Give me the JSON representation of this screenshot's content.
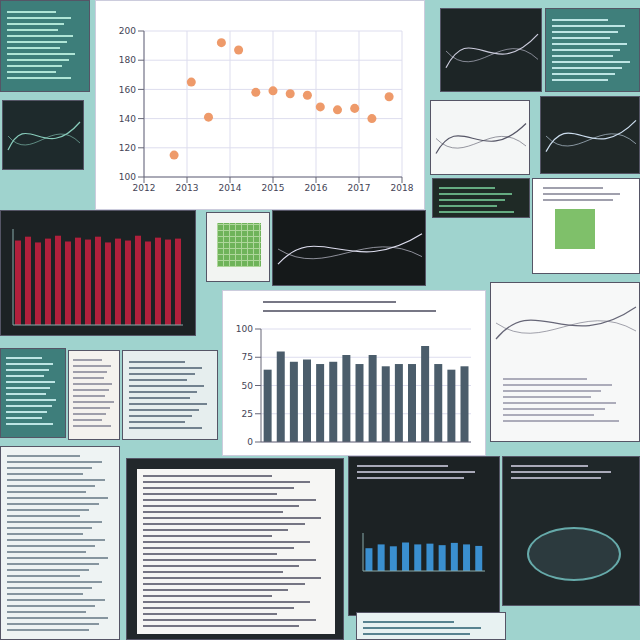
{
  "chart_data": [
    {
      "type": "scatter",
      "x": [
        2012.7,
        2013.1,
        2013.5,
        2013.8,
        2014.2,
        2014.6,
        2015.0,
        2015.4,
        2015.8,
        2016.1,
        2016.5,
        2016.9,
        2017.3,
        2017.7
      ],
      "values": [
        115,
        165,
        141,
        192,
        187,
        158,
        159,
        157,
        156,
        148,
        146,
        147,
        140,
        155
      ],
      "color": "#ee9a6a",
      "xlim": [
        2012,
        2018
      ],
      "xticks": [
        2012,
        2013,
        2014,
        2015,
        2016,
        2017,
        2018
      ],
      "ylim": [
        100,
        200
      ],
      "yticks": [
        100,
        120,
        140,
        160,
        180,
        200
      ],
      "grid": true,
      "marker": "circle"
    },
    {
      "type": "bar",
      "categories": [
        null,
        null,
        null,
        null,
        null,
        null,
        null,
        null,
        null,
        null,
        null,
        null,
        null,
        null,
        null,
        null
      ],
      "values": [
        64,
        80,
        71,
        73,
        69,
        71,
        77,
        69,
        77,
        67,
        69,
        69,
        85,
        69,
        64,
        67
      ],
      "color": "#4b5d6b",
      "ylim": [
        0,
        100
      ],
      "yticks": [
        0,
        25,
        50,
        75,
        100
      ],
      "grid": true,
      "tick_labels": "y"
    },
    {
      "type": "bar",
      "categories": [
        null,
        null,
        null,
        null,
        null,
        null,
        null,
        null,
        null,
        null,
        null,
        null,
        null,
        null,
        null,
        null,
        null
      ],
      "values": [
        88,
        92,
        86,
        90,
        93,
        87,
        91,
        89,
        92,
        86,
        90,
        88,
        93,
        87,
        91,
        89,
        90
      ],
      "color": "#b0203c",
      "ylim": [
        0,
        100
      ],
      "tick_labels": false
    },
    {
      "type": "bar",
      "categories": [
        null,
        null,
        null,
        null,
        null,
        null,
        null,
        null,
        null,
        null
      ],
      "values": [
        60,
        70,
        65,
        75,
        70,
        72,
        68,
        74,
        70,
        66
      ],
      "color": "#3a8fd0",
      "ylim": [
        0,
        100
      ],
      "tick_labels": false
    }
  ]
}
